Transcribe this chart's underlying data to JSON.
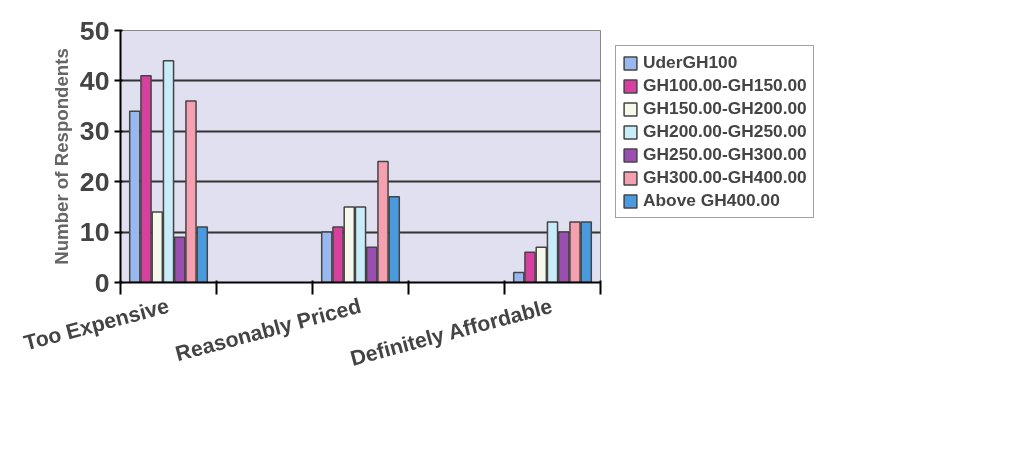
{
  "chart_data": {
    "type": "bar",
    "ylabel": "Number of Respondents",
    "categories": [
      "Too Expensive",
      null,
      "Reasonably Priced",
      null,
      "Definitely Affordable"
    ],
    "series": [
      {
        "name": "UderGH100",
        "color": "#9ab8f0",
        "values": [
          34,
          null,
          10,
          null,
          2
        ]
      },
      {
        "name": "GH100.00-GH150.00",
        "color": "#d6409f",
        "values": [
          41,
          null,
          11,
          null,
          6
        ]
      },
      {
        "name": "GH150.00-GH200.00",
        "color": "#f5f8ea",
        "values": [
          14,
          null,
          15,
          null,
          7
        ]
      },
      {
        "name": "GH200.00-GH250.00",
        "color": "#c8ecf8",
        "values": [
          44,
          null,
          15,
          null,
          12
        ]
      },
      {
        "name": "GH250.00-GH300.00",
        "color": "#9a4fb0",
        "values": [
          9,
          null,
          7,
          null,
          10
        ]
      },
      {
        "name": "GH300.00-GH400.00",
        "color": "#f4a0b0",
        "values": [
          36,
          null,
          24,
          null,
          12
        ]
      },
      {
        "name": "Above GH400.00",
        "color": "#4a9ae0",
        "values": [
          11,
          null,
          17,
          null,
          12
        ]
      }
    ],
    "ylim": [
      0,
      50
    ],
    "yticks": [
      0,
      10,
      20,
      30,
      40,
      50
    ],
    "grid": "y",
    "legend": "right"
  }
}
